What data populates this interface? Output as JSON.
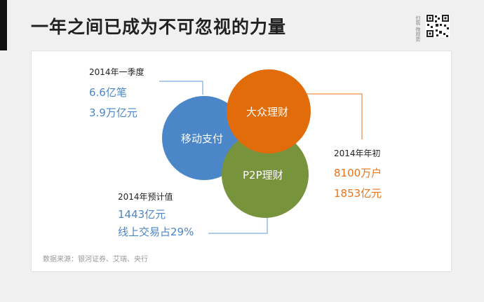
{
  "header": {
    "title": "一年之间已成为不可忽视的力量",
    "qr_caption": "扫我 微观势",
    "qr_icon": "qr-code-icon"
  },
  "circles": {
    "mobile_payment": {
      "label": "移动支付",
      "color": "#4a86c8"
    },
    "mass_finance": {
      "label": "大众理财",
      "color": "#e36c0a"
    },
    "p2p_finance": {
      "label": "P2P理财",
      "color": "#77933c"
    }
  },
  "annotations": {
    "q1": {
      "label": "2014年一季度",
      "lines": [
        "6.6亿笔",
        "3.9万亿元"
      ],
      "color": "#4a86c8"
    },
    "early_2014": {
      "label": "2014年年初",
      "lines": [
        "8100万户",
        "1853亿元"
      ],
      "color": "#e8741c"
    },
    "estimate_2014": {
      "label": "2014年预计值",
      "lines": [
        "1443亿元",
        "线上交易占29%"
      ],
      "color": "#4a86c8"
    }
  },
  "footer": {
    "source": "数据来源：银河证券、艾瑞、央行"
  }
}
